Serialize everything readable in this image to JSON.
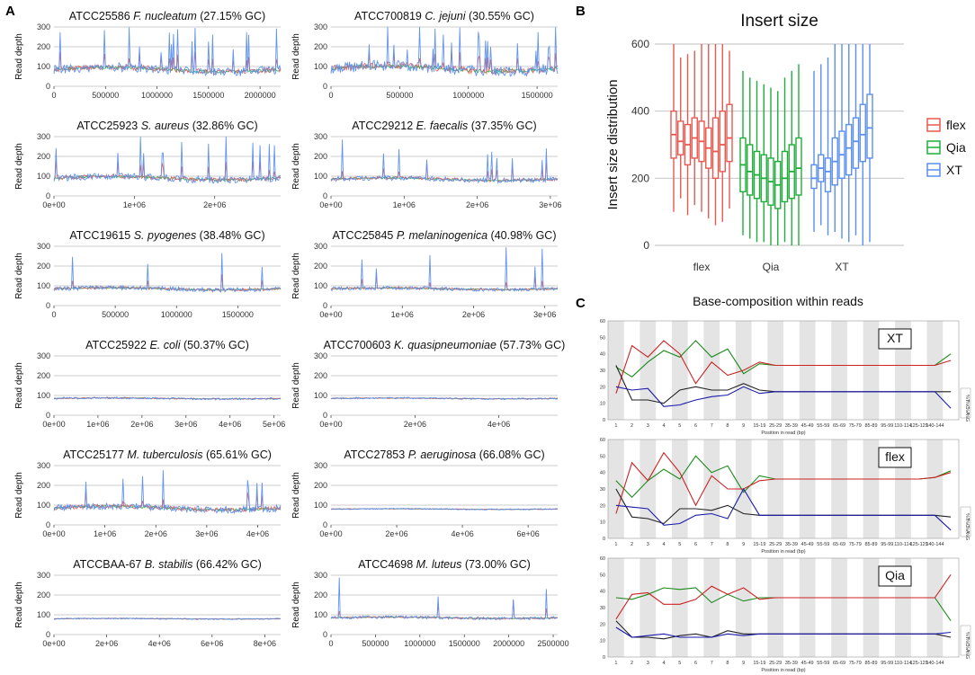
{
  "panels": {
    "a": "A",
    "b": "B",
    "c": "C"
  },
  "colors": {
    "flex": "#e8584f",
    "qia": "#1fad3a",
    "xt": "#5a8ef0",
    "grid": "#bdbdbd",
    "gcG": "#1a8a1a",
    "gcA": "#cc2222",
    "gcT": "#222222",
    "gcC": "#1a1aaa"
  },
  "chart_data": [
    {
      "type": "line",
      "ylabel": "Read depth",
      "ylim": [
        0,
        300
      ],
      "yticks": [
        "0",
        "100",
        "200",
        "300"
      ],
      "series_names": [
        "flex",
        "Qia",
        "XT"
      ],
      "plots": [
        {
          "title_pre": "ATCC25586 ",
          "title_italic": "F. nucleatum",
          "title_post": " (27.15% GC)",
          "xticks": [
            "0",
            "500000",
            "1000000",
            "1500000",
            "2000000"
          ],
          "xtick_values": [
            0,
            500000,
            1000000,
            1500000,
            2000000
          ],
          "xmax": 2200000,
          "baseline": 85,
          "noise": 45,
          "spikes": 18
        },
        {
          "title_pre": "ATCC700819 ",
          "title_italic": "C. jejuni",
          "title_post": " (30.55% GC)",
          "xticks": [
            "0",
            "500000",
            "1000000",
            "1500000"
          ],
          "xtick_values": [
            0,
            500000,
            1000000,
            1500000
          ],
          "xmax": 1650000,
          "baseline": 90,
          "noise": 55,
          "spikes": 22
        },
        {
          "title_pre": "ATCC25923 ",
          "title_italic": "S. aureus",
          "title_post": " (32.86% GC)",
          "xticks": [
            "0e+00",
            "1e+06",
            "2e+06"
          ],
          "xtick_values": [
            0,
            1000000,
            2000000
          ],
          "xmax": 2820000,
          "baseline": 90,
          "noise": 35,
          "spikes": 14
        },
        {
          "title_pre": "ATCC29212 ",
          "title_italic": "E. faecalis",
          "title_post": " (37.35% GC)",
          "xticks": [
            "0e+00",
            "1e+06",
            "2e+06",
            "3e+06"
          ],
          "xtick_values": [
            0,
            1000000,
            2000000,
            3000000
          ],
          "xmax": 3100000,
          "baseline": 85,
          "noise": 25,
          "spikes": 10
        },
        {
          "title_pre": "ATCC19615 ",
          "title_italic": "S. pyogenes",
          "title_post": " (38.48% GC)",
          "xticks": [
            "0",
            "500000",
            "1000000",
            "1500000"
          ],
          "xtick_values": [
            0,
            500000,
            1000000,
            1500000
          ],
          "xmax": 1850000,
          "baseline": 85,
          "noise": 22,
          "spikes": 4
        },
        {
          "title_pre": "ATCC25845 ",
          "title_italic": "P. melaninogenica",
          "title_post": " (40.98% GC)",
          "xticks": [
            "0e+00",
            "1e+06",
            "2e+06",
            "3e+06"
          ],
          "xtick_values": [
            0,
            1000000,
            2000000,
            3000000
          ],
          "xmax": 3180000,
          "baseline": 85,
          "noise": 18,
          "spikes": 6
        },
        {
          "title_pre": "ATCC25922 ",
          "title_italic": "E. coli",
          "title_post": " (50.37% GC)",
          "xticks": [
            "0e+00",
            "1e+06",
            "2e+06",
            "3e+06",
            "4e+06",
            "5e+06"
          ],
          "xtick_values": [
            0,
            1000000,
            2000000,
            3000000,
            4000000,
            5000000
          ],
          "xmax": 5150000,
          "baseline": 85,
          "noise": 10,
          "spikes": 0
        },
        {
          "title_pre": "ATCC700603 ",
          "title_italic": "K. quasipneumoniae",
          "title_post": " (57.73% GC)",
          "xticks": [
            "0e+00",
            "2e+06",
            "4e+06"
          ],
          "xtick_values": [
            0,
            2000000,
            4000000
          ],
          "xmax": 5400000,
          "baseline": 85,
          "noise": 8,
          "spikes": 0
        },
        {
          "title_pre": "ATCC25177 ",
          "title_italic": "M. tuberculosis",
          "title_post": " (65.61% GC)",
          "xticks": [
            "0e+00",
            "1e+06",
            "2e+06",
            "3e+06",
            "4e+06"
          ],
          "xtick_values": [
            0,
            1000000,
            2000000,
            3000000,
            4000000
          ],
          "xmax": 4450000,
          "baseline": 85,
          "noise": 35,
          "spikes": 8
        },
        {
          "title_pre": "ATCC27853 ",
          "title_italic": "P. aeruginosa",
          "title_post": " (66.08% GC)",
          "xticks": [
            "0e+00",
            "2e+06",
            "4e+06",
            "6e+06"
          ],
          "xtick_values": [
            0,
            2000000,
            4000000,
            6000000
          ],
          "xmax": 6900000,
          "baseline": 80,
          "noise": 6,
          "spikes": 0
        },
        {
          "title_pre": "ATCCBAA-67 ",
          "title_italic": "B. stabilis",
          "title_post": " (66.42% GC)",
          "xticks": [
            "0e+00",
            "2e+06",
            "4e+06",
            "6e+06",
            "8e+06"
          ],
          "xtick_values": [
            0,
            2000000,
            4000000,
            6000000,
            8000000
          ],
          "xmax": 8600000,
          "baseline": 80,
          "noise": 6,
          "spikes": 0
        },
        {
          "title_pre": "ATCC4698 ",
          "title_italic": "M. luteus",
          "title_post": " (73.00% GC)",
          "xticks": [
            "0",
            "500000",
            "1000000",
            "1500000",
            "2000000",
            "2500000"
          ],
          "xtick_values": [
            0,
            500000,
            1000000,
            1500000,
            2000000,
            2500000
          ],
          "xmax": 2550000,
          "baseline": 85,
          "noise": 14,
          "spikes": 4
        }
      ]
    },
    {
      "type": "box",
      "title": "Insert size",
      "ylabel": "Insert size distribution",
      "ylim": [
        0,
        600
      ],
      "yticks": [
        "0",
        "200",
        "400",
        "600"
      ],
      "categories": [
        "flex",
        "Qia",
        "XT"
      ],
      "legend": [
        "flex",
        "Qia",
        "XT"
      ],
      "groups": [
        {
          "name": "flex",
          "boxes": [
            {
              "lo": 100,
              "q1": 260,
              "med": 330,
              "q3": 400,
              "hi": 600
            },
            {
              "lo": 140,
              "q1": 270,
              "med": 310,
              "q3": 370,
              "hi": 560
            },
            {
              "lo": 90,
              "q1": 240,
              "med": 300,
              "q3": 360,
              "hi": 570
            },
            {
              "lo": 120,
              "q1": 260,
              "med": 320,
              "q3": 380,
              "hi": 580
            },
            {
              "lo": 100,
              "q1": 250,
              "med": 310,
              "q3": 370,
              "hi": 600
            },
            {
              "lo": 80,
              "q1": 230,
              "med": 290,
              "q3": 350,
              "hi": 600
            },
            {
              "lo": 60,
              "q1": 200,
              "med": 280,
              "q3": 380,
              "hi": 600
            },
            {
              "lo": 70,
              "q1": 220,
              "med": 300,
              "q3": 400,
              "hi": 600
            },
            {
              "lo": 110,
              "q1": 250,
              "med": 320,
              "q3": 420,
              "hi": 580
            }
          ]
        },
        {
          "name": "Qia",
          "boxes": [
            {
              "lo": 30,
              "q1": 160,
              "med": 240,
              "q3": 320,
              "hi": 520
            },
            {
              "lo": 20,
              "q1": 150,
              "med": 220,
              "q3": 300,
              "hi": 500
            },
            {
              "lo": 10,
              "q1": 140,
              "med": 210,
              "q3": 280,
              "hi": 490
            },
            {
              "lo": 10,
              "q1": 130,
              "med": 200,
              "q3": 270,
              "hi": 480
            },
            {
              "lo": 0,
              "q1": 120,
              "med": 190,
              "q3": 260,
              "hi": 470
            },
            {
              "lo": 0,
              "q1": 110,
              "med": 180,
              "q3": 250,
              "hi": 460
            },
            {
              "lo": 10,
              "q1": 130,
              "med": 200,
              "q3": 280,
              "hi": 500
            },
            {
              "lo": 0,
              "q1": 140,
              "med": 220,
              "q3": 300,
              "hi": 520
            },
            {
              "lo": 0,
              "q1": 150,
              "med": 230,
              "q3": 320,
              "hi": 540
            }
          ]
        },
        {
          "name": "XT",
          "boxes": [
            {
              "lo": 40,
              "q1": 170,
              "med": 200,
              "q3": 240,
              "hi": 520
            },
            {
              "lo": 60,
              "q1": 190,
              "med": 230,
              "q3": 270,
              "hi": 540
            },
            {
              "lo": 30,
              "q1": 160,
              "med": 220,
              "q3": 260,
              "hi": 560
            },
            {
              "lo": 40,
              "q1": 180,
              "med": 250,
              "q3": 320,
              "hi": 600
            },
            {
              "lo": 20,
              "q1": 200,
              "med": 270,
              "q3": 340,
              "hi": 600
            },
            {
              "lo": 10,
              "q1": 210,
              "med": 290,
              "q3": 360,
              "hi": 600
            },
            {
              "lo": 30,
              "q1": 230,
              "med": 310,
              "q3": 380,
              "hi": 600
            },
            {
              "lo": 0,
              "q1": 250,
              "med": 330,
              "q3": 420,
              "hi": 600
            },
            {
              "lo": 10,
              "q1": 260,
              "med": 350,
              "q3": 450,
              "hi": 600
            }
          ]
        }
      ]
    },
    {
      "type": "line",
      "title": "Base-composition within reads",
      "xlabel": "Position in read (bp)",
      "ylim": [
        0,
        60
      ],
      "yticks": [
        "0",
        "10",
        "20",
        "30",
        "40",
        "50",
        "60"
      ],
      "xticks": [
        "1",
        "2",
        "3",
        "4",
        "5",
        "6",
        "7",
        "8",
        "9",
        "15-19",
        "25-29",
        "35-39",
        "45-49",
        "55-59",
        "65-69",
        "75-79",
        "85-89",
        "95-99",
        "110-114",
        "125-129",
        "140-144"
      ],
      "legend": [
        "%T",
        "%C",
        "%A",
        "%G"
      ],
      "subplots": [
        {
          "label": "XT",
          "G": [
            32,
            26,
            35,
            42,
            38,
            48,
            38,
            43,
            28,
            34,
            33,
            33,
            33,
            33,
            33,
            33,
            33,
            33,
            33,
            33,
            33,
            40
          ],
          "A": [
            16,
            45,
            38,
            48,
            40,
            22,
            35,
            27,
            30,
            35,
            33,
            33,
            33,
            33,
            33,
            33,
            33,
            33,
            33,
            33,
            33,
            36
          ],
          "T": [
            33,
            12,
            12,
            10,
            18,
            20,
            18,
            18,
            22,
            18,
            17,
            17,
            17,
            17,
            17,
            17,
            17,
            17,
            17,
            17,
            17,
            17
          ],
          "C": [
            20,
            18,
            19,
            8,
            9,
            12,
            14,
            15,
            20,
            16,
            17,
            17,
            17,
            17,
            17,
            17,
            17,
            17,
            17,
            17,
            17,
            7
          ]
        },
        {
          "label": "flex",
          "G": [
            35,
            25,
            35,
            42,
            36,
            50,
            40,
            44,
            28,
            38,
            36,
            36,
            36,
            36,
            36,
            36,
            36,
            36,
            36,
            36,
            37,
            41
          ],
          "A": [
            15,
            46,
            35,
            52,
            40,
            20,
            38,
            30,
            30,
            35,
            36,
            36,
            36,
            36,
            36,
            36,
            36,
            36,
            36,
            36,
            37,
            40
          ],
          "T": [
            30,
            13,
            12,
            9,
            18,
            18,
            17,
            20,
            15,
            14,
            14,
            14,
            14,
            14,
            14,
            14,
            14,
            14,
            14,
            14,
            14,
            13
          ],
          "C": [
            20,
            19,
            18,
            8,
            9,
            14,
            15,
            12,
            30,
            14,
            14,
            14,
            14,
            14,
            14,
            14,
            14,
            14,
            14,
            14,
            14,
            5
          ]
        },
        {
          "label": "Qia",
          "G": [
            36,
            35,
            38,
            42,
            41,
            42,
            33,
            38,
            34,
            36,
            36,
            36,
            36,
            36,
            36,
            36,
            36,
            36,
            36,
            36,
            36,
            22
          ],
          "A": [
            23,
            38,
            39,
            32,
            32,
            35,
            43,
            38,
            42,
            35,
            36,
            36,
            36,
            36,
            36,
            36,
            36,
            36,
            36,
            36,
            36,
            50
          ],
          "T": [
            22,
            12,
            12,
            11,
            13,
            14,
            12,
            16,
            14,
            14,
            14,
            14,
            14,
            14,
            14,
            14,
            14,
            14,
            14,
            14,
            14,
            12
          ],
          "C": [
            18,
            12,
            13,
            14,
            12,
            12,
            12,
            14,
            13,
            14,
            14,
            14,
            14,
            14,
            14,
            14,
            14,
            14,
            14,
            14,
            14,
            15
          ]
        }
      ]
    }
  ]
}
